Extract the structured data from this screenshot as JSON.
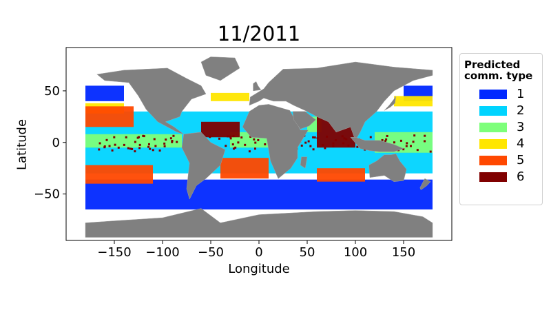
{
  "chart_data": {
    "type": "scatter",
    "title": "11/2011",
    "xlabel": "Longitude",
    "ylabel": "Latitude",
    "xlim": [
      -200,
      200
    ],
    "ylim": [
      -95,
      92
    ],
    "xticks": [
      -150,
      -100,
      -50,
      0,
      50,
      100,
      150
    ],
    "xtick_labels": [
      "−150",
      "−100",
      "−50",
      "0",
      "50",
      "100",
      "150"
    ],
    "yticks": [
      -50,
      0,
      50
    ],
    "ytick_labels": [
      "−50",
      "0",
      "50"
    ],
    "grid": false,
    "legend": {
      "title": "Predicted comm. type",
      "title_lines": [
        "Predicted",
        "comm. type"
      ],
      "placement": "outside-right",
      "entries": [
        {
          "label": "1",
          "color": "#0028ff"
        },
        {
          "label": "2",
          "color": "#00d4ff"
        },
        {
          "label": "3",
          "color": "#7dff7a"
        },
        {
          "label": "4",
          "color": "#ffe600"
        },
        {
          "label": "5",
          "color": "#ff4800"
        },
        {
          "label": "6",
          "color": "#800000"
        }
      ]
    },
    "land_color": "#808080",
    "regions": [
      {
        "type": 1,
        "lon": [
          -180,
          180
        ],
        "lat": [
          -65,
          -36
        ]
      },
      {
        "type": 1,
        "lon": [
          -180,
          -140
        ],
        "lat": [
          40,
          55
        ]
      },
      {
        "type": 1,
        "lon": [
          150,
          180
        ],
        "lat": [
          40,
          55
        ]
      },
      {
        "type": 2,
        "lon": [
          -180,
          180
        ],
        "lat": [
          -30,
          30
        ]
      },
      {
        "type": 4,
        "lon": [
          -180,
          -140
        ],
        "lat": [
          28,
          38
        ]
      },
      {
        "type": 4,
        "lon": [
          -50,
          -10
        ],
        "lat": [
          40,
          48
        ]
      },
      {
        "type": 4,
        "lon": [
          140,
          180
        ],
        "lat": [
          35,
          45
        ]
      },
      {
        "type": 5,
        "lon": [
          -180,
          -110
        ],
        "lat": [
          -40,
          -22
        ]
      },
      {
        "type": 5,
        "lon": [
          -40,
          10
        ],
        "lat": [
          -35,
          -15
        ]
      },
      {
        "type": 5,
        "lon": [
          60,
          110
        ],
        "lat": [
          -38,
          -25
        ]
      },
      {
        "type": 5,
        "lon": [
          -180,
          -130
        ],
        "lat": [
          15,
          35
        ]
      },
      {
        "type": 3,
        "lon": [
          -180,
          -80
        ],
        "lat": [
          -5,
          8
        ]
      },
      {
        "type": 3,
        "lon": [
          -30,
          10
        ],
        "lat": [
          -5,
          10
        ]
      },
      {
        "type": 3,
        "lon": [
          120,
          180
        ],
        "lat": [
          -10,
          10
        ]
      },
      {
        "type": 3,
        "lon": [
          50,
          65
        ],
        "lat": [
          10,
          25
        ]
      },
      {
        "type": 6,
        "lon": [
          60,
          100
        ],
        "lat": [
          -5,
          25
        ]
      },
      {
        "type": 6,
        "lon": [
          -60,
          -20
        ],
        "lat": [
          5,
          20
        ]
      },
      {
        "type": 6,
        "lon": [
          -180,
          180
        ],
        "lat": [
          -8,
          8
        ],
        "sparse": true
      }
    ]
  }
}
